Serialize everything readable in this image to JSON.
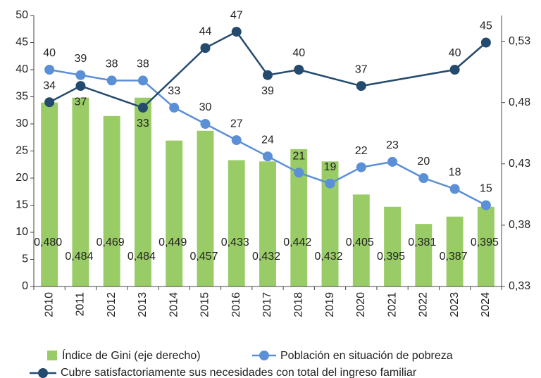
{
  "chart_data": {
    "type": "bar_line",
    "categories": [
      "2010",
      "2011",
      "2012",
      "2013",
      "2014",
      "2015",
      "2016",
      "2017",
      "2018",
      "2019",
      "2020",
      "2021",
      "2022",
      "2023",
      "2024"
    ],
    "ylim": [
      0,
      50
    ],
    "yticks": [
      0,
      5,
      10,
      15,
      20,
      25,
      30,
      35,
      40,
      45,
      50
    ],
    "y2lim": [
      0.33,
      0.551
    ],
    "y2ticks": [
      {
        "value": 0.33,
        "label": "0,33"
      },
      {
        "value": 0.38,
        "label": "0,38"
      },
      {
        "value": 0.43,
        "label": "0,43"
      },
      {
        "value": 0.48,
        "label": "0,48"
      },
      {
        "value": 0.53,
        "label": "0,53"
      }
    ],
    "series": [
      {
        "name": "Índice de Gini (eje derecho)",
        "type": "bar",
        "axis": "y2",
        "color": "#99cc66",
        "values": [
          0.48,
          0.484,
          0.469,
          0.484,
          0.449,
          0.457,
          0.433,
          0.432,
          0.442,
          0.432,
          0.405,
          0.395,
          0.381,
          0.387,
          0.395
        ],
        "value_labels": [
          "0,480",
          "0,484",
          "0,469",
          "0,484",
          "0,449",
          "0,457",
          "0,433",
          "0,432",
          "0,442",
          "0,432",
          "0,405",
          "0,395",
          "0,381",
          "0,387",
          "0,395"
        ]
      },
      {
        "name": "Población en situación de pobreza",
        "type": "line",
        "color": "#5b8fd6",
        "values": [
          40,
          39,
          38,
          38,
          33,
          30,
          27,
          24,
          21,
          19,
          22,
          23,
          20,
          18,
          15
        ]
      },
      {
        "name": "Cubre satisfactoriamente sus necesidades con total del ingreso familiar",
        "type": "line",
        "color": "#244a6e",
        "values": [
          34,
          37,
          null,
          33,
          null,
          44,
          47,
          39,
          40,
          null,
          37,
          null,
          null,
          40,
          45
        ]
      }
    ]
  }
}
